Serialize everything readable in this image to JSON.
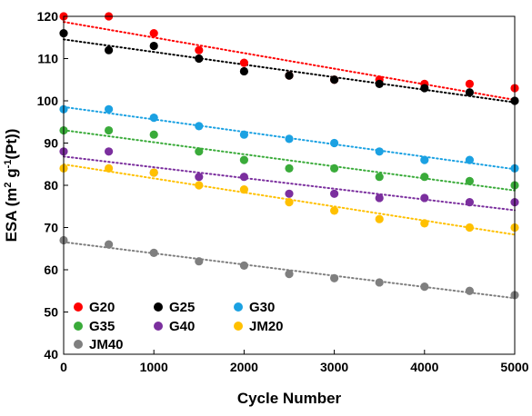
{
  "chart_data": {
    "type": "scatter",
    "xlabel": "Cycle Number",
    "ylabel": {
      "prefix": "ESA (m",
      "sup1": "2",
      "mid": " g",
      "sup2": "-1",
      "suffix": "(Pt))"
    },
    "xlim": [
      0,
      5000
    ],
    "ylim": [
      40,
      120
    ],
    "xticks": [
      0,
      1000,
      2000,
      3000,
      4000,
      5000
    ],
    "yticks": [
      40,
      50,
      60,
      70,
      80,
      90,
      100,
      110,
      120
    ],
    "grid": false,
    "legend_position": "bottom-left",
    "trendline": "linear-dotted",
    "x": [
      0,
      500,
      1000,
      1500,
      2000,
      2500,
      3000,
      3500,
      4000,
      4500,
      5000
    ],
    "series": [
      {
        "name": "G20",
        "color": "#ff0000",
        "values": [
          120,
          120,
          116,
          112,
          109,
          106,
          105,
          105,
          104,
          104,
          103
        ]
      },
      {
        "name": "G25",
        "color": "#000000",
        "values": [
          116,
          112,
          113,
          110,
          107,
          106,
          105,
          104,
          103,
          102,
          100
        ]
      },
      {
        "name": "G30",
        "color": "#1ba1e2",
        "values": [
          98,
          98,
          96,
          94,
          92,
          91,
          90,
          88,
          86,
          86,
          84
        ]
      },
      {
        "name": "G35",
        "color": "#3aab3a",
        "values": [
          93,
          93,
          92,
          88,
          86,
          84,
          84,
          82,
          82,
          81,
          80
        ]
      },
      {
        "name": "G40",
        "color": "#7b2f9e",
        "values": [
          88,
          88,
          83,
          82,
          82,
          78,
          78,
          77,
          77,
          76,
          76
        ]
      },
      {
        "name": "JM20",
        "color": "#ffc000",
        "values": [
          84,
          84,
          83,
          80,
          79,
          76,
          74,
          72,
          71,
          70,
          70
        ]
      },
      {
        "name": "JM40",
        "color": "#7f7f7f",
        "values": [
          67,
          66,
          64,
          62,
          61,
          59,
          58,
          57,
          56,
          55,
          54
        ]
      }
    ]
  }
}
